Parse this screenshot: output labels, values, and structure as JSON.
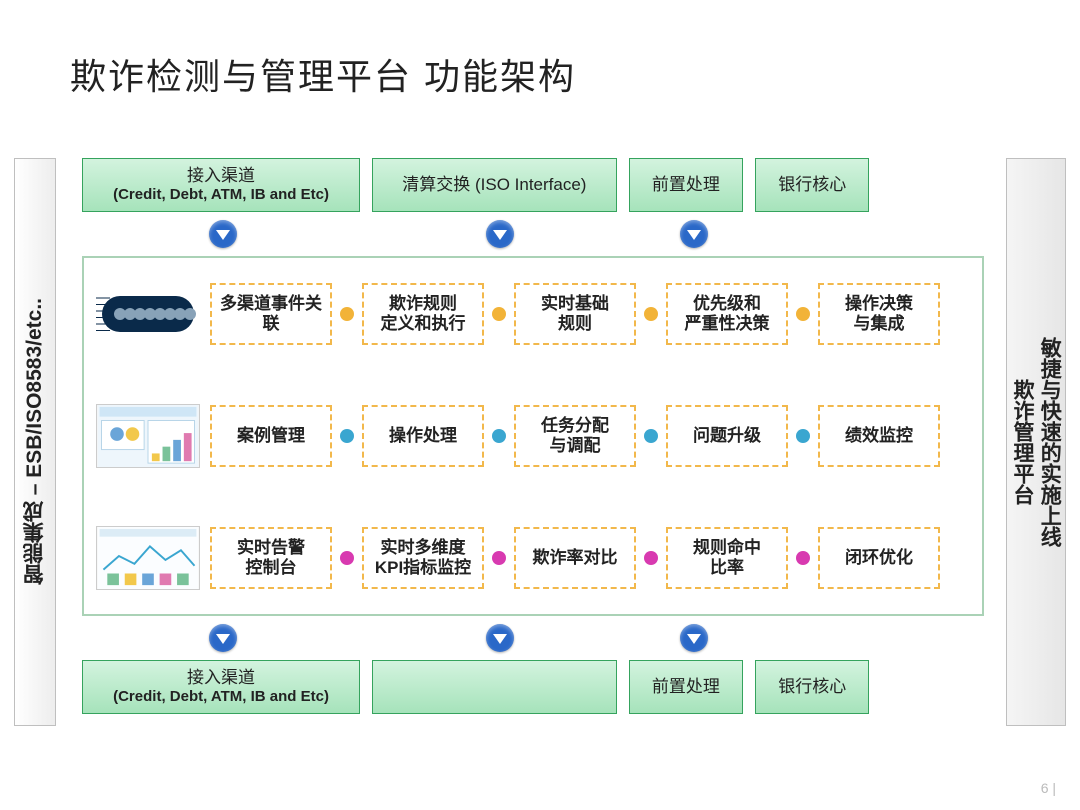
{
  "title": "欺诈检测与管理平台  功能架构",
  "left_rail": "智能集成 – ESB/ISO8583/etc..",
  "right_rail_l1": "敏捷与快速的实施上线",
  "right_rail_l2": "欺诈管理平台",
  "channels_top": {
    "a_l1": "接入渠道",
    "a_l2": "(Credit, Debt, ATM, IB and Etc)",
    "b": "清算交换 (ISO Interface)",
    "c": "前置处理",
    "d": "银行核心"
  },
  "channels_bottom": {
    "a_l1": "接入渠道",
    "a_l2": "(Credit, Debt, ATM, IB and Etc)",
    "b": "",
    "c": "前置处理",
    "d": "银行核心"
  },
  "rows": [
    {
      "dot_color": "#f2b338",
      "border_color": "#f2b84b",
      "items": [
        "多渠道事件关联",
        "欺诈规则\n定义和执行",
        "实时基础\n规则",
        "优先级和\n严重性决策",
        "操作决策\n与集成"
      ]
    },
    {
      "dot_color": "#3aa6d0",
      "border_color": "#f2b84b",
      "items": [
        "案例管理",
        "操作处理",
        "任务分配\n与调配",
        "问题升级",
        "绩效监控"
      ]
    },
    {
      "dot_color": "#d83ab0",
      "border_color": "#f2b84b",
      "items": [
        "实时告警\n控制台",
        "实时多维度\nKPI指标监控",
        "欺诈率对比",
        "规则命中\n比率",
        "闭环优化"
      ]
    }
  ],
  "colors": {
    "channel_bg_top": "#d3f3de",
    "channel_bg_bottom": "#a6e3bb",
    "channel_border": "#35a35d",
    "arrow_bg": "#2a68c8",
    "panel_border": "#aad2b6",
    "rail_border": "#bfbfbf"
  },
  "page_num": "6   |"
}
